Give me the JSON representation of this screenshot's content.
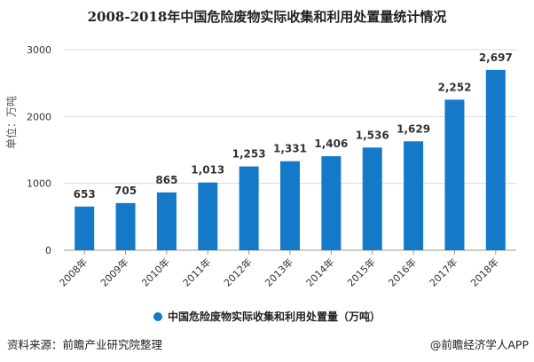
{
  "chart_data": {
    "type": "bar",
    "title": "2008-2018年中国危险废物实际收集和利用处置量统计情况",
    "categories": [
      "2008年",
      "2009年",
      "2010年",
      "2011年",
      "2012年",
      "2013年",
      "2014年",
      "2015年",
      "2016年",
      "2017年",
      "2018年"
    ],
    "series": [
      {
        "name": "中国危险废物实际收集和利用处置量（万吨）",
        "values": [
          653,
          705,
          865,
          1013,
          1253,
          1331,
          1406,
          1536,
          1629,
          2252,
          2697
        ]
      }
    ],
    "data_labels": [
      "653",
      "705",
      "865",
      "1,013",
      "1,253",
      "1,331",
      "1,406",
      "1,536",
      "1,629",
      "2,252",
      "2,697"
    ],
    "ylabel": "单位：万吨",
    "ylim": [
      0,
      3000
    ],
    "yticks": [
      "0",
      "1000",
      "2000",
      "3000"
    ],
    "grid": true,
    "legend": "bottom",
    "colors": {
      "bar": "#1479c8",
      "grid": "#d9d9d9"
    }
  },
  "footer": {
    "source": "资料来源：前瞻产业研究院整理",
    "credit": "@前瞻经济学人APP"
  },
  "watermark": "前瞻产业研究院"
}
